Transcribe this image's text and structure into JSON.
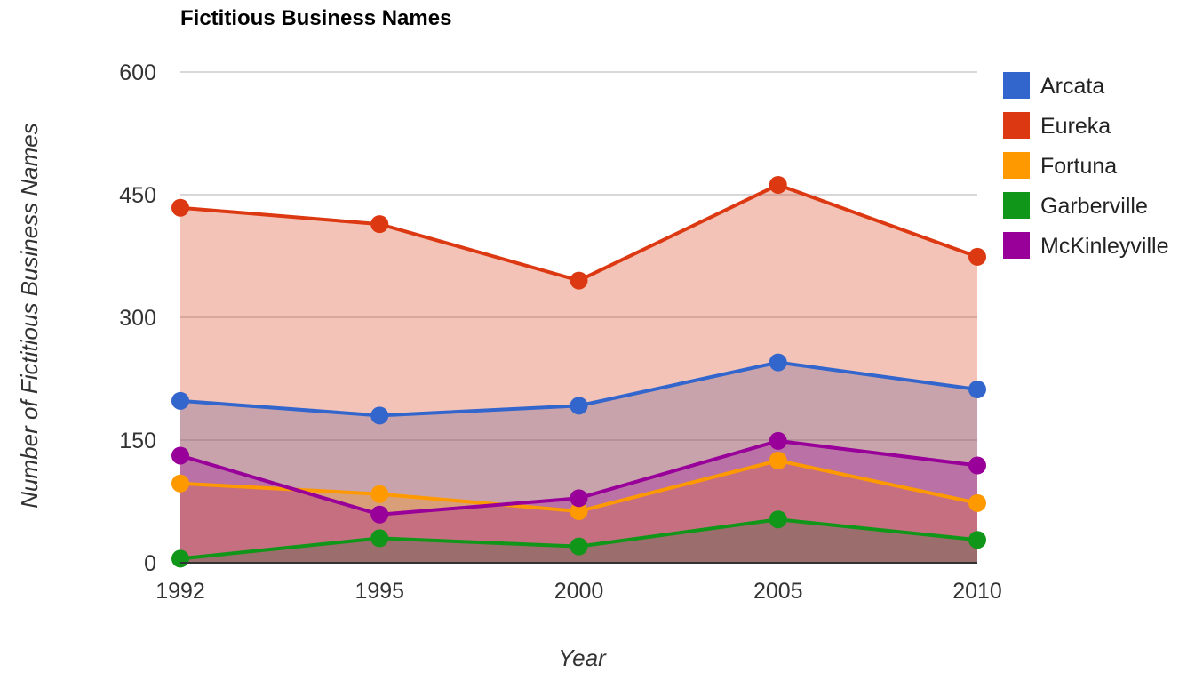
{
  "chart_data": {
    "type": "area",
    "title": "Fictitious Business Names",
    "xlabel": "Year",
    "ylabel": "Number of Fictitious Business Names",
    "categories": [
      "1992",
      "1995",
      "2000",
      "2005",
      "2010"
    ],
    "ylim": [
      0,
      600
    ],
    "yticks": [
      "0",
      "150",
      "300",
      "450",
      "600"
    ],
    "grid": true,
    "legend_position": "right",
    "series": [
      {
        "name": "Arcata",
        "color": "#3366cc",
        "values": [
          198,
          180,
          192,
          245,
          212
        ]
      },
      {
        "name": "Eureka",
        "color": "#dc3912",
        "values": [
          434,
          414,
          345,
          462,
          374
        ]
      },
      {
        "name": "Fortuna",
        "color": "#ff9900",
        "values": [
          97,
          84,
          63,
          125,
          73
        ]
      },
      {
        "name": "Garberville",
        "color": "#109618",
        "values": [
          5,
          30,
          20,
          53,
          28
        ]
      },
      {
        "name": "McKinleyville",
        "color": "#990099",
        "values": [
          131,
          59,
          79,
          149,
          119
        ]
      }
    ]
  }
}
